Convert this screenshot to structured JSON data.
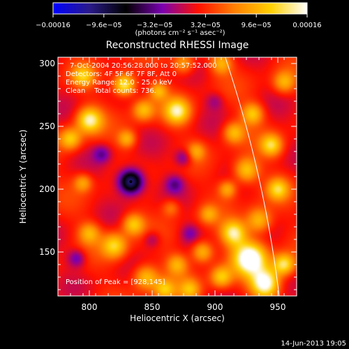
{
  "colorbar": {
    "tick_labels": [
      "−0.00016",
      "−9.6e−05",
      "−3.2e−05",
      "3.2e−05",
      "9.6e−05",
      "0.00016"
    ],
    "tick_values": [
      -0.00016,
      -9.6e-05,
      -3.2e-05,
      3.2e-05,
      9.6e-05,
      0.00016
    ],
    "range": [
      -0.00016,
      0.00016
    ],
    "units_label": "(photons cm⁻² s⁻¹ asec⁻²)",
    "palette": [
      "#0000ff",
      "#2a1a8a",
      "#000000",
      "#7a00b0",
      "#ff1000",
      "#ff8000",
      "#ffd000",
      "#ffffff"
    ]
  },
  "chart_data": {
    "type": "heatmap",
    "title": "Reconstructed RHESSI Image",
    "xlabel": "Heliocentric X (arcsec)",
    "ylabel": "Heliocentric Y (arcsec)",
    "xlim": [
      775,
      965
    ],
    "ylim": [
      115,
      305
    ],
    "x_ticks": [
      800,
      850,
      900,
      950
    ],
    "y_ticks": [
      150,
      200,
      250,
      300
    ],
    "info_lines": [
      "7-Oct-2004 20:56:28.000 to 20:57:52.000",
      "Detectors: 4F 5F 6F 7F 8F, Att 0",
      "Energy Range: 12.0 - 25.0 keV",
      "Clean    Total counts: 736."
    ],
    "peak_text": "Position of Peak = [928,145]",
    "peak_position": [
      928,
      145
    ],
    "limb": {
      "center": [
        0,
        0
      ],
      "radius_arcsec": 958
    },
    "blobs": [
      {
        "x": 928,
        "y": 145,
        "amp": 1.0,
        "w": 9
      },
      {
        "x": 940,
        "y": 125,
        "amp": 0.95,
        "w": 8
      },
      {
        "x": 915,
        "y": 165,
        "amp": 0.75,
        "w": 7
      },
      {
        "x": 955,
        "y": 140,
        "amp": 0.7,
        "w": 6
      },
      {
        "x": 935,
        "y": 175,
        "amp": 0.55,
        "w": 7
      },
      {
        "x": 925,
        "y": 215,
        "amp": 0.6,
        "w": 7
      },
      {
        "x": 950,
        "y": 200,
        "amp": 0.55,
        "w": 6
      },
      {
        "x": 945,
        "y": 235,
        "amp": 0.6,
        "w": 6
      },
      {
        "x": 930,
        "y": 260,
        "amp": 0.55,
        "w": 6
      },
      {
        "x": 915,
        "y": 245,
        "amp": 0.5,
        "w": 6
      },
      {
        "x": 955,
        "y": 285,
        "amp": 0.45,
        "w": 6
      },
      {
        "x": 910,
        "y": 200,
        "amp": 0.45,
        "w": 5
      },
      {
        "x": 890,
        "y": 150,
        "amp": 0.55,
        "w": 6
      },
      {
        "x": 870,
        "y": 140,
        "amp": 0.45,
        "w": 6
      },
      {
        "x": 845,
        "y": 130,
        "amp": 0.55,
        "w": 7
      },
      {
        "x": 820,
        "y": 155,
        "amp": 0.6,
        "w": 7
      },
      {
        "x": 835,
        "y": 172,
        "amp": 0.55,
        "w": 6
      },
      {
        "x": 860,
        "y": 120,
        "amp": 0.5,
        "w": 6
      },
      {
        "x": 800,
        "y": 165,
        "amp": 0.45,
        "w": 6
      },
      {
        "x": 880,
        "y": 120,
        "amp": 0.45,
        "w": 6
      },
      {
        "x": 905,
        "y": 130,
        "amp": 0.55,
        "w": 6
      },
      {
        "x": 800,
        "y": 255,
        "amp": 0.75,
        "w": 7
      },
      {
        "x": 785,
        "y": 240,
        "amp": 0.55,
        "w": 6
      },
      {
        "x": 843,
        "y": 263,
        "amp": 0.5,
        "w": 6
      },
      {
        "x": 830,
        "y": 240,
        "amp": 0.45,
        "w": 5
      },
      {
        "x": 870,
        "y": 262,
        "amp": 0.7,
        "w": 7
      },
      {
        "x": 855,
        "y": 278,
        "amp": 0.45,
        "w": 5
      },
      {
        "x": 828,
        "y": 283,
        "amp": 0.8,
        "w": 6
      },
      {
        "x": 795,
        "y": 290,
        "amp": 0.5,
        "w": 6
      },
      {
        "x": 795,
        "y": 205,
        "amp": 0.4,
        "w": 5
      },
      {
        "x": 875,
        "y": 300,
        "amp": 0.45,
        "w": 6
      },
      {
        "x": 905,
        "y": 300,
        "amp": 0.45,
        "w": 6
      },
      {
        "x": 885,
        "y": 230,
        "amp": 0.35,
        "w": 5
      },
      {
        "x": 895,
        "y": 180,
        "amp": 0.35,
        "w": 5
      },
      {
        "x": 865,
        "y": 185,
        "amp": 0.3,
        "w": 5
      },
      {
        "x": 833,
        "y": 206,
        "amp": -0.95,
        "w": 7
      },
      {
        "x": 875,
        "y": 225,
        "amp": -0.35,
        "w": 5
      },
      {
        "x": 868,
        "y": 204,
        "amp": -0.3,
        "w": 5
      },
      {
        "x": 810,
        "y": 228,
        "amp": -0.3,
        "w": 5
      },
      {
        "x": 790,
        "y": 145,
        "amp": -0.35,
        "w": 5
      },
      {
        "x": 850,
        "y": 160,
        "amp": -0.25,
        "w": 5
      },
      {
        "x": 880,
        "y": 165,
        "amp": -0.25,
        "w": 5
      },
      {
        "x": 900,
        "y": 270,
        "amp": -0.2,
        "w": 5
      }
    ]
  },
  "footer": {
    "timestamp": "14-Jun-2013 19:05"
  }
}
